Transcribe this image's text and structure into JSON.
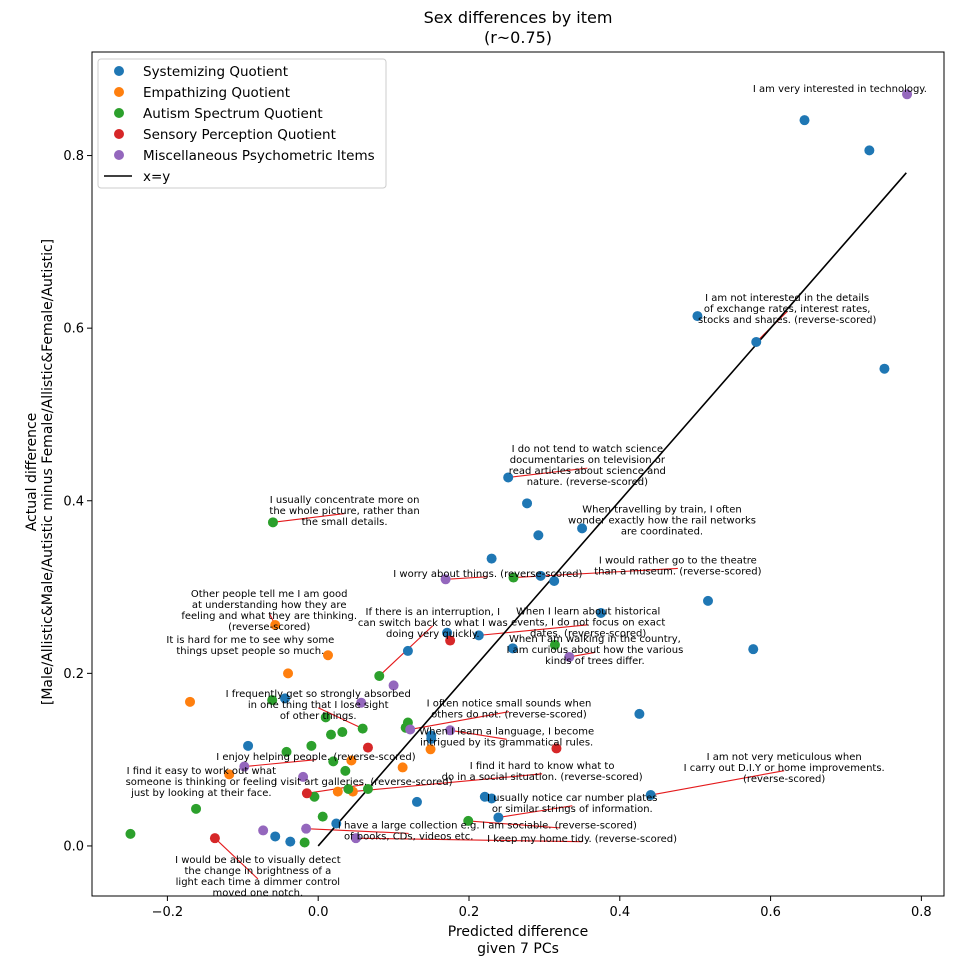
{
  "chart_data": {
    "type": "scatter",
    "title": [
      "Sex differences by item",
      "(r~0.75)"
    ],
    "xlabel": [
      "Predicted difference",
      "given 7 PCs"
    ],
    "ylabel": [
      "Actual difference",
      "[Male/Allistic&Male/Autistic minus Female/Allistic&Female/Autistic]"
    ],
    "xlim": [
      -0.3,
      0.83
    ],
    "ylim": [
      -0.058,
      0.92
    ],
    "xticks": [
      -0.2,
      0.0,
      0.2,
      0.4,
      0.6,
      0.8
    ],
    "xtick_labels": [
      "−0.2",
      "0.0",
      "0.2",
      "0.4",
      "0.6",
      "0.8"
    ],
    "yticks": [
      0.0,
      0.2,
      0.4,
      0.6,
      0.8
    ],
    "ytick_labels": [
      "0.0",
      "0.2",
      "0.4",
      "0.6",
      "0.8"
    ],
    "grid": false,
    "legend_position": "top-left",
    "reference_line": {
      "label": "x=y",
      "color": "#000000",
      "x": [
        0.0,
        0.78
      ],
      "y": [
        0.0,
        0.78
      ]
    },
    "series": [
      {
        "name": "Systemizing Quotient",
        "color": "#1f77b4",
        "points": [
          [
            0.645,
            0.841
          ],
          [
            0.731,
            0.806
          ],
          [
            0.751,
            0.553
          ],
          [
            0.581,
            0.584
          ],
          [
            0.503,
            0.614
          ],
          [
            0.252,
            0.427
          ],
          [
            0.277,
            0.397
          ],
          [
            0.292,
            0.36
          ],
          [
            0.35,
            0.368
          ],
          [
            0.23,
            0.333
          ],
          [
            0.295,
            0.313
          ],
          [
            0.313,
            0.307
          ],
          [
            0.375,
            0.27
          ],
          [
            0.517,
            0.284
          ],
          [
            0.577,
            0.228
          ],
          [
            0.213,
            0.244
          ],
          [
            0.258,
            0.229
          ],
          [
            0.119,
            0.226
          ],
          [
            0.171,
            0.247
          ],
          [
            0.426,
            0.153
          ],
          [
            0.15,
            0.128
          ],
          [
            0.15,
            0.124
          ],
          [
            0.441,
            0.059
          ],
          [
            0.221,
            0.057
          ],
          [
            0.23,
            0.055
          ],
          [
            0.131,
            0.051
          ],
          [
            0.239,
            0.033
          ],
          [
            0.024,
            0.026
          ],
          [
            -0.093,
            0.116
          ],
          [
            -0.044,
            0.171
          ],
          [
            -0.037,
            0.005
          ],
          [
            -0.057,
            0.011
          ]
        ]
      },
      {
        "name": "Empathizing Quotient",
        "color": "#ff7f0e",
        "points": [
          [
            -0.057,
            0.256
          ],
          [
            0.013,
            0.221
          ],
          [
            -0.04,
            0.2
          ],
          [
            -0.17,
            0.167
          ],
          [
            0.149,
            0.112
          ],
          [
            0.112,
            0.091
          ],
          [
            0.044,
            0.099
          ],
          [
            0.026,
            0.063
          ],
          [
            0.046,
            0.063
          ],
          [
            -0.118,
            0.083
          ]
        ]
      },
      {
        "name": "Autism Spectrum Quotient",
        "color": "#2ca02c",
        "points": [
          [
            -0.06,
            0.375
          ],
          [
            0.259,
            0.311
          ],
          [
            0.314,
            0.233
          ],
          [
            0.081,
            0.197
          ],
          [
            -0.061,
            0.169
          ],
          [
            0.01,
            0.149
          ],
          [
            0.119,
            0.143
          ],
          [
            0.059,
            0.136
          ],
          [
            0.116,
            0.137
          ],
          [
            0.032,
            0.132
          ],
          [
            0.017,
            0.129
          ],
          [
            -0.009,
            0.116
          ],
          [
            -0.042,
            0.109
          ],
          [
            0.02,
            0.098
          ],
          [
            0.036,
            0.087
          ],
          [
            0.04,
            0.066
          ],
          [
            0.066,
            0.066
          ],
          [
            -0.005,
            0.057
          ],
          [
            -0.162,
            0.043
          ],
          [
            0.006,
            0.034
          ],
          [
            0.199,
            0.029
          ],
          [
            -0.249,
            0.014
          ],
          [
            -0.018,
            0.004
          ]
        ]
      },
      {
        "name": "Sensory Perception Quotient",
        "color": "#d62728",
        "points": [
          [
            0.175,
            0.238
          ],
          [
            0.316,
            0.113
          ],
          [
            0.066,
            0.114
          ],
          [
            -0.015,
            0.061
          ],
          [
            -0.137,
            0.009
          ]
        ]
      },
      {
        "name": "Miscellaneous Psychometric Items",
        "color": "#9467bd",
        "points": [
          [
            0.781,
            0.871
          ],
          [
            0.169,
            0.309
          ],
          [
            0.333,
            0.219
          ],
          [
            0.1,
            0.186
          ],
          [
            0.057,
            0.166
          ],
          [
            0.175,
            0.134
          ],
          [
            0.122,
            0.135
          ],
          [
            -0.098,
            0.092
          ],
          [
            -0.02,
            0.08
          ],
          [
            -0.016,
            0.02
          ],
          [
            -0.073,
            0.018
          ],
          [
            0.05,
            0.009
          ]
        ]
      }
    ],
    "annotations": [
      {
        "lines": [
          "I am very interested in technology."
        ],
        "text_at": [
          0.692,
          0.878
        ],
        "point": null
      },
      {
        "lines": [
          "I am not interested in the details",
          "of exchange rates, interest rates,",
          "stocks and shares. (reverse-scored)"
        ],
        "text_at": [
          0.622,
          0.636
        ],
        "point": [
          0.581,
          0.584
        ]
      },
      {
        "lines": [
          "I do not tend to watch science",
          "documentaries on television or",
          "read articles about science and",
          "nature. (reverse-scored)"
        ],
        "text_at": [
          0.357,
          0.461
        ],
        "point": [
          0.252,
          0.427
        ]
      },
      {
        "lines": [
          "When travelling by train, I often",
          "wonder exactly how the rail networks",
          "are coordinated."
        ],
        "text_at": [
          0.456,
          0.391
        ],
        "point": null
      },
      {
        "lines": [
          "I usually concentrate more on",
          "the whole picture, rather than",
          "the small details."
        ],
        "text_at": [
          0.035,
          0.402
        ],
        "point": [
          -0.06,
          0.375
        ]
      },
      {
        "lines": [
          "I would rather go to the theatre",
          "than a museum. (reverse-scored)"
        ],
        "text_at": [
          0.477,
          0.332
        ],
        "point": [
          0.259,
          0.311
        ]
      },
      {
        "lines": [
          "I worry about things. (reverse-scored)"
        ],
        "text_at": [
          0.225,
          0.316
        ],
        "point": [
          0.169,
          0.309
        ]
      },
      {
        "lines": [
          "Other people tell me I am good",
          "at understanding how they are",
          "feeling and what they are thinking.",
          "(reverse-scored)"
        ],
        "text_at": [
          -0.065,
          0.293
        ],
        "point": [
          -0.057,
          0.256
        ]
      },
      {
        "lines": [
          "When I learn about historical",
          "events, I do not focus on exact",
          "dates. (reverse-scored)"
        ],
        "text_at": [
          0.358,
          0.273
        ],
        "point": [
          0.213,
          0.244
        ]
      },
      {
        "lines": [
          "If there is an interruption, I",
          "can switch back to what I was",
          "doing very quickly."
        ],
        "text_at": [
          0.152,
          0.272
        ],
        "point": [
          0.081,
          0.197
        ]
      },
      {
        "lines": [
          "It is hard for me to see why some",
          "things upset people so much."
        ],
        "text_at": [
          -0.09,
          0.24
        ],
        "point": null
      },
      {
        "lines": [
          "When I am walking in the country,",
          "I am curious about how the various",
          "kinds of trees differ."
        ],
        "text_at": [
          0.367,
          0.241
        ],
        "point": [
          0.333,
          0.219
        ]
      },
      {
        "lines": [
          "I frequently get so strongly absorbed",
          "in one thing that I lose sight",
          "of other things."
        ],
        "text_at": [
          0.0,
          0.177
        ],
        "point": [
          0.059,
          0.136
        ]
      },
      {
        "lines": [
          "I often notice small sounds when",
          "others do not. (reverse-scored)"
        ],
        "text_at": [
          0.253,
          0.166
        ],
        "point": [
          0.122,
          0.135
        ]
      },
      {
        "lines": [
          "When I learn a language, I become",
          "intrigued by its grammatical rules."
        ],
        "text_at": [
          0.25,
          0.134
        ],
        "point": [
          0.175,
          0.134
        ]
      },
      {
        "lines": [
          "I enjoy helping people. (reverse-scored)"
        ],
        "text_at": [
          -0.003,
          0.104
        ],
        "point": [
          -0.098,
          0.092
        ]
      },
      {
        "lines": [
          "I am not very meticulous when",
          "I carry out D.I.Y or home improvements.",
          "(reverse-scored)"
        ],
        "text_at": [
          0.618,
          0.104
        ],
        "point": [
          0.441,
          0.059
        ]
      },
      {
        "lines": [
          "I find it easy to work out what",
          "someone is thinking or feeling",
          "just by looking at their face."
        ],
        "text_at": [
          -0.155,
          0.088
        ],
        "point": null
      },
      {
        "lines": [
          "I find it hard to know what to",
          "do in a social situation. (reverse-scored)"
        ],
        "text_at": [
          0.297,
          0.094
        ],
        "point": [
          0.046,
          0.063
        ]
      },
      {
        "lines": [
          "I visit art galleries. (reverse-scored)"
        ],
        "text_at": [
          0.06,
          0.075
        ],
        "point": [
          -0.015,
          0.061
        ]
      },
      {
        "lines": [
          "I usually notice car number plates",
          "or similar strings of information."
        ],
        "text_at": [
          0.337,
          0.057
        ],
        "point": [
          0.239,
          0.033
        ]
      },
      {
        "lines": [
          "I am sociable. (reverse-scored)"
        ],
        "text_at": [
          0.32,
          0.025
        ],
        "point": [
          0.199,
          0.029
        ]
      },
      {
        "lines": [
          "I have a large collection e.g.",
          "of books, CDs, videos etc."
        ],
        "text_at": [
          0.12,
          0.025
        ],
        "point": [
          -0.016,
          0.02
        ]
      },
      {
        "lines": [
          "I keep my home tidy. (reverse-scored)"
        ],
        "text_at": [
          0.35,
          0.009
        ],
        "point": [
          0.05,
          0.009
        ]
      },
      {
        "lines": [
          "I would be able to visually detect",
          "the change in brightness of a",
          "light each time a dimmer control",
          "moved one notch."
        ],
        "text_at": [
          -0.08,
          -0.015
        ],
        "point": [
          -0.137,
          0.009
        ]
      }
    ]
  }
}
